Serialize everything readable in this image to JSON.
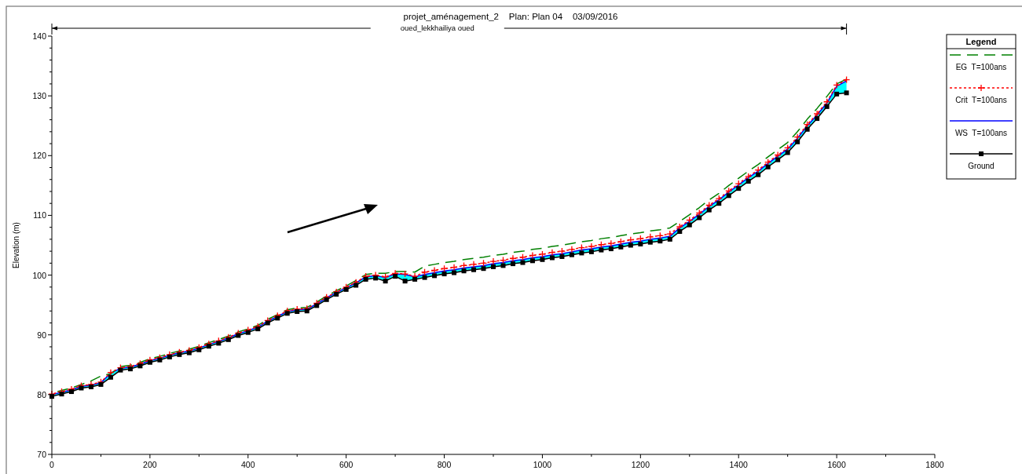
{
  "chart_data": {
    "type": "line",
    "title": "projet_aménagement_2    Plan: Plan 04    03/09/2016",
    "ylabel": "Elevation (m)",
    "legend_title": "Legend",
    "legend": "top right",
    "annotations": [
      "oued_lekkhailiya oued"
    ],
    "x": [
      0,
      20,
      40,
      60,
      80,
      100,
      120,
      140,
      160,
      180,
      200,
      220,
      240,
      260,
      280,
      300,
      320,
      340,
      360,
      380,
      400,
      420,
      440,
      460,
      480,
      500,
      520,
      540,
      560,
      580,
      600,
      620,
      640,
      660,
      680,
      700,
      720,
      740,
      760,
      780,
      800,
      820,
      840,
      860,
      880,
      900,
      920,
      940,
      960,
      980,
      1000,
      1020,
      1040,
      1060,
      1080,
      1100,
      1120,
      1140,
      1160,
      1180,
      1200,
      1220,
      1240,
      1260,
      1280,
      1300,
      1320,
      1340,
      1360,
      1380,
      1400,
      1420,
      1440,
      1460,
      1480,
      1500,
      1520,
      1540,
      1560,
      1580,
      1600,
      1620
    ],
    "xlim": [
      0,
      1800
    ],
    "xticks": [
      0,
      {
        "value": 100,
        "label": null
      },
      200,
      {
        "value": 300,
        "label": null
      },
      400,
      {
        "value": 500,
        "label": null
      },
      600,
      {
        "value": 700,
        "label": null
      },
      800,
      {
        "value": 900,
        "label": null
      },
      1000,
      {
        "value": 1100,
        "label": null
      },
      1200,
      {
        "value": 1300,
        "label": null
      },
      1400,
      {
        "value": 1500,
        "label": null
      },
      1600,
      {
        "value": 1700,
        "label": null
      },
      1800
    ],
    "ylim": [
      70,
      140
    ],
    "yticks": [
      70,
      {
        "value": 72,
        "label": null
      },
      {
        "value": 74,
        "label": null
      },
      {
        "value": 76,
        "label": null
      },
      {
        "value": 78,
        "label": null
      },
      80,
      {
        "value": 82,
        "label": null
      },
      {
        "value": 84,
        "label": null
      },
      {
        "value": 86,
        "label": null
      },
      {
        "value": 88,
        "label": null
      },
      90,
      {
        "value": 92,
        "label": null
      },
      {
        "value": 94,
        "label": null
      },
      {
        "value": 96,
        "label": null
      },
      {
        "value": 98,
        "label": null
      },
      100,
      {
        "value": 102,
        "label": null
      },
      {
        "value": 104,
        "label": null
      },
      {
        "value": 106,
        "label": null
      },
      {
        "value": 108,
        "label": null
      },
      110,
      {
        "value": 112,
        "label": null
      },
      {
        "value": 114,
        "label": null
      },
      {
        "value": 116,
        "label": null
      },
      {
        "value": 118,
        "label": null
      },
      120,
      {
        "value": 122,
        "label": null
      },
      {
        "value": 124,
        "label": null
      },
      {
        "value": 126,
        "label": null
      },
      {
        "value": 128,
        "label": null
      },
      130,
      {
        "value": 132,
        "label": null
      },
      {
        "value": 134,
        "label": null
      },
      {
        "value": 136,
        "label": null
      },
      {
        "value": 138,
        "label": null
      },
      140
    ],
    "series": [
      {
        "name": "EG  T=100ans",
        "color": "#008000",
        "line_style": "dashed",
        "marker": "none",
        "values": [
          80.3,
          80.7,
          81.1,
          81.7,
          82.3,
          83.1,
          83.5,
          84.7,
          84.9,
          85.4,
          86.0,
          86.4,
          86.9,
          87.3,
          87.6,
          88.1,
          88.7,
          89.2,
          89.8,
          90.5,
          91.0,
          91.6,
          92.6,
          93.4,
          94.2,
          94.5,
          94.6,
          95.5,
          96.5,
          97.4,
          98.2,
          99.1,
          100.1,
          100.3,
          100.3,
          100.6,
          100.6,
          100.5,
          101.5,
          101.8,
          102.1,
          102.3,
          102.6,
          102.8,
          103.0,
          103.3,
          103.5,
          103.8,
          104.0,
          104.3,
          104.5,
          104.8,
          105.0,
          105.3,
          105.6,
          105.8,
          106.1,
          106.3,
          106.6,
          106.9,
          107.1,
          107.4,
          107.6,
          107.9,
          109.0,
          110.1,
          111.3,
          112.6,
          113.7,
          115.0,
          116.2,
          117.4,
          118.5,
          119.8,
          121.0,
          122.2,
          124.0,
          126.1,
          127.9,
          129.9,
          132.0,
          132.8
        ]
      },
      {
        "name": "Crit  T=100ans",
        "color": "#ff0000",
        "line_style": "dotted",
        "marker": "cross",
        "values": [
          80.1,
          80.5,
          80.9,
          81.5,
          81.7,
          82.1,
          83.7,
          84.5,
          84.7,
          85.2,
          85.8,
          86.2,
          86.7,
          87.1,
          87.4,
          87.9,
          88.5,
          89.0,
          89.6,
          90.3,
          90.8,
          91.4,
          92.4,
          93.2,
          94.0,
          94.3,
          94.4,
          95.3,
          96.3,
          97.2,
          98.0,
          98.8,
          99.8,
          100.0,
          99.7,
          100.3,
          100.2,
          99.8,
          100.5,
          100.8,
          101.1,
          101.3,
          101.6,
          101.8,
          102.0,
          102.3,
          102.5,
          102.8,
          103.0,
          103.3,
          103.5,
          103.8,
          104.0,
          104.3,
          104.6,
          104.8,
          105.1,
          105.3,
          105.6,
          105.9,
          106.1,
          106.4,
          106.6,
          106.9,
          108.1,
          109.2,
          110.4,
          111.7,
          112.8,
          114.1,
          115.3,
          116.5,
          117.6,
          118.9,
          120.1,
          121.3,
          123.1,
          125.2,
          127.0,
          129.0,
          131.8,
          132.7
        ]
      },
      {
        "name": "WS  T=100ans",
        "type": "area",
        "color": "#0000ff",
        "line_style": "solid",
        "marker": "none",
        "values": [
          80.0,
          80.4,
          80.8,
          81.4,
          81.6,
          82.0,
          83.6,
          84.4,
          84.6,
          85.1,
          85.7,
          86.1,
          86.6,
          87.0,
          87.3,
          87.8,
          88.4,
          88.9,
          89.5,
          90.2,
          90.7,
          91.3,
          92.3,
          93.1,
          93.9,
          94.2,
          94.3,
          95.2,
          96.2,
          97.1,
          97.9,
          98.7,
          99.7,
          99.9,
          99.6,
          100.2,
          100.1,
          99.7,
          100.1,
          100.4,
          100.7,
          100.9,
          101.2,
          101.4,
          101.6,
          101.9,
          102.1,
          102.4,
          102.6,
          102.9,
          103.1,
          103.4,
          103.6,
          103.9,
          104.2,
          104.4,
          104.7,
          104.9,
          105.2,
          105.5,
          105.7,
          106.0,
          106.2,
          106.5,
          107.9,
          109.0,
          110.2,
          111.5,
          112.6,
          113.9,
          115.1,
          116.3,
          117.4,
          118.7,
          119.9,
          121.1,
          122.9,
          125.0,
          126.8,
          128.8,
          131.6,
          132.5
        ]
      },
      {
        "name": "Ground",
        "color": "#000000",
        "line_style": "solid",
        "marker": "square",
        "values": [
          79.7,
          80.1,
          80.5,
          81.1,
          81.3,
          81.7,
          82.9,
          84.1,
          84.3,
          84.8,
          85.4,
          85.8,
          86.3,
          86.7,
          87.0,
          87.5,
          88.1,
          88.6,
          89.2,
          89.9,
          90.4,
          91.0,
          92.0,
          92.8,
          93.6,
          93.9,
          94.0,
          94.9,
          95.9,
          96.8,
          97.6,
          98.3,
          99.3,
          99.5,
          99.0,
          99.8,
          99.0,
          99.3,
          99.6,
          99.9,
          100.2,
          100.4,
          100.7,
          100.9,
          101.1,
          101.4,
          101.6,
          101.9,
          102.1,
          102.4,
          102.6,
          102.9,
          103.1,
          103.4,
          103.7,
          103.9,
          104.2,
          104.4,
          104.7,
          105.0,
          105.2,
          105.5,
          105.7,
          106.0,
          107.3,
          108.4,
          109.6,
          110.9,
          112.0,
          113.3,
          114.5,
          115.7,
          116.8,
          118.1,
          119.3,
          120.5,
          122.3,
          124.4,
          126.2,
          128.2,
          130.3,
          130.5
        ]
      }
    ]
  }
}
